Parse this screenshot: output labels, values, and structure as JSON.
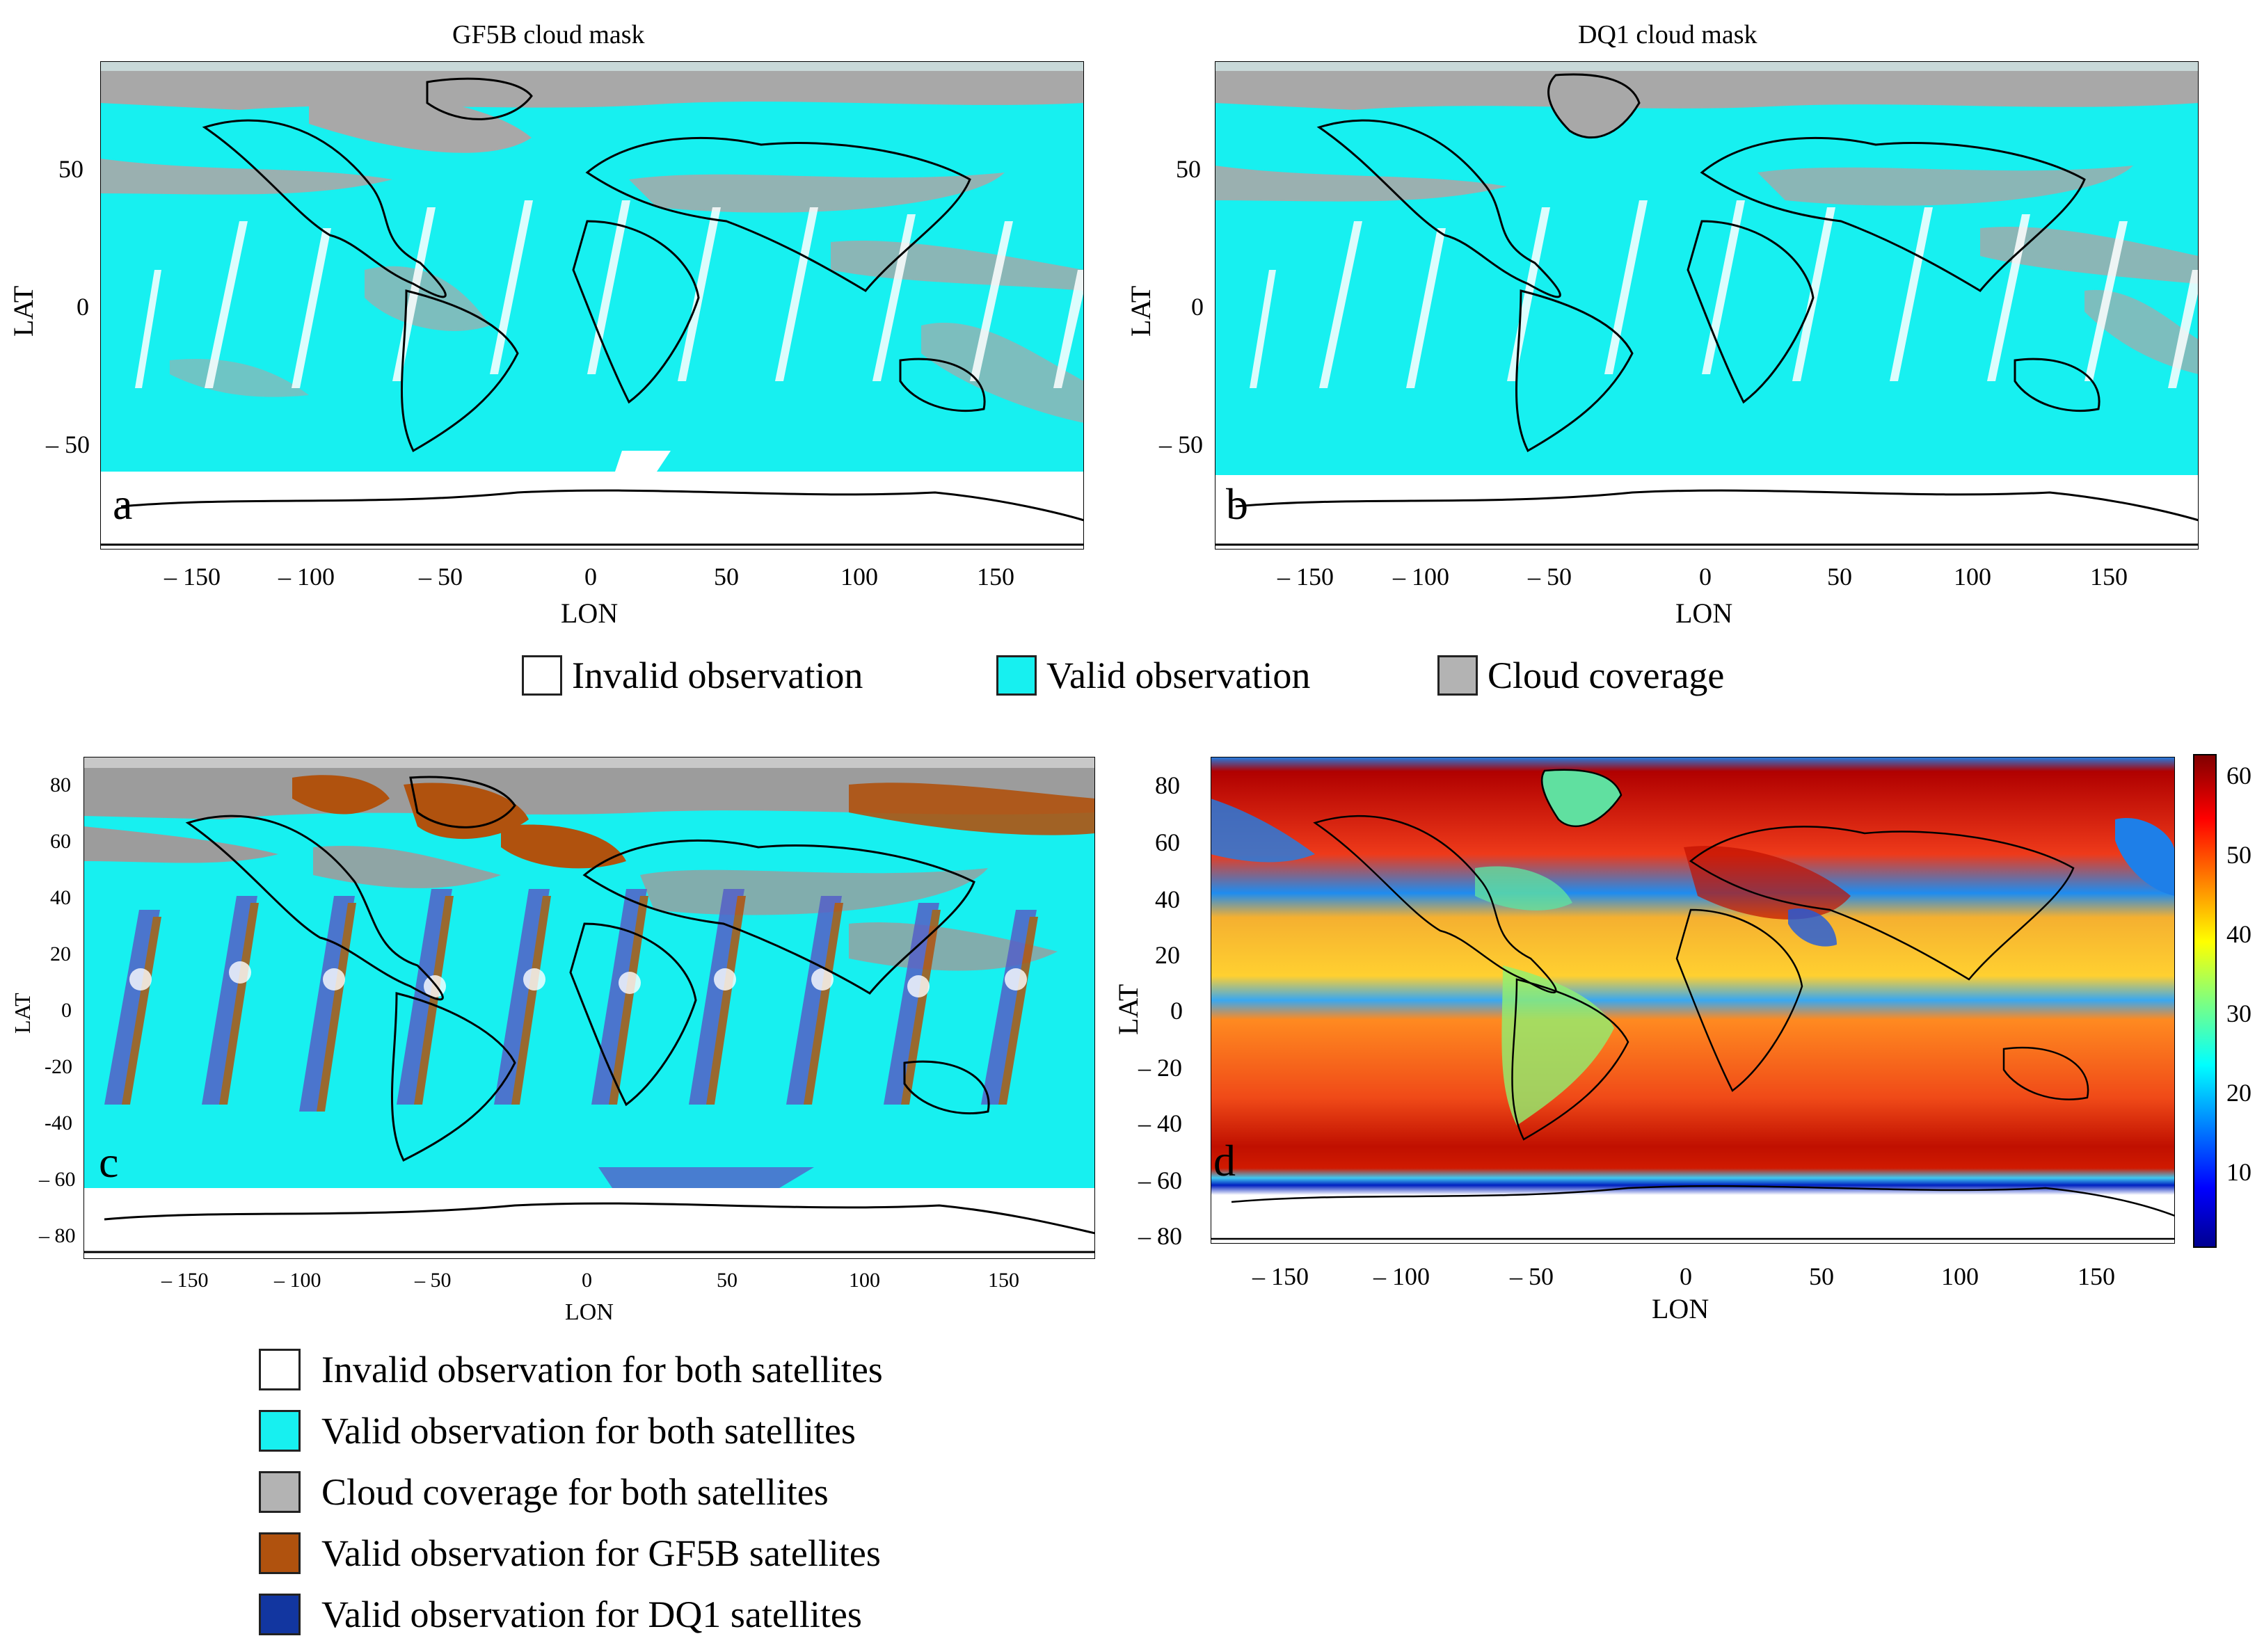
{
  "panels": {
    "a": {
      "title": "GF5B cloud mask",
      "letter": "a",
      "xlabel": "LON",
      "ylabel": "LAT",
      "xticks": [
        "– 150",
        "– 100",
        "– 50",
        "0",
        "50",
        "100",
        "150"
      ],
      "yticks": [
        "50",
        "0",
        "– 50"
      ]
    },
    "b": {
      "title": "DQ1 cloud mask",
      "letter": "b",
      "xlabel": "LON",
      "ylabel": "LAT",
      "xticks": [
        "– 150",
        "– 100",
        "– 50",
        "0",
        "50",
        "100",
        "150"
      ],
      "yticks": [
        "50",
        "0",
        "– 50"
      ]
    },
    "c": {
      "letter": "c",
      "xlabel": "LON",
      "ylabel": "LAT",
      "xticks": [
        "– 150",
        "– 100",
        "– 50",
        "0",
        "50",
        "100",
        "150"
      ],
      "yticks": [
        "80",
        "60",
        "40",
        "20",
        "0",
        "-20",
        "-40",
        "– 60",
        "– 80"
      ]
    },
    "d": {
      "letter": "d",
      "xlabel": "LON",
      "ylabel": "LAT",
      "xticks": [
        "– 150",
        "– 100",
        "– 50",
        "0",
        "50",
        "100",
        "150"
      ],
      "yticks": [
        "80",
        "60",
        "40",
        "20",
        "0",
        "– 20",
        "– 40",
        "– 60",
        "– 80"
      ],
      "colorbar": {
        "ticks": [
          "60",
          "50",
          "40",
          "30",
          "20",
          "10"
        ],
        "range": [
          0,
          62
        ]
      }
    }
  },
  "legend_top": [
    {
      "label": "Invalid observation",
      "color": "#ffffff"
    },
    {
      "label": "Valid observation",
      "color": "#17f0f0"
    },
    {
      "label": "Cloud coverage",
      "color": "#b3b3b3"
    }
  ],
  "legend_bottom": [
    {
      "label": "Invalid observation for both satellites",
      "color": "#ffffff"
    },
    {
      "label": "Valid observation for both satellites",
      "color": "#17f0f0"
    },
    {
      "label": "Cloud coverage for both satellites",
      "color": "#b3b3b3"
    },
    {
      "label": "Valid observation for GF5B satellites",
      "color": "#b0520e"
    },
    {
      "label": "Valid observation for DQ1 satellites",
      "color": "#1236a0"
    }
  ]
}
